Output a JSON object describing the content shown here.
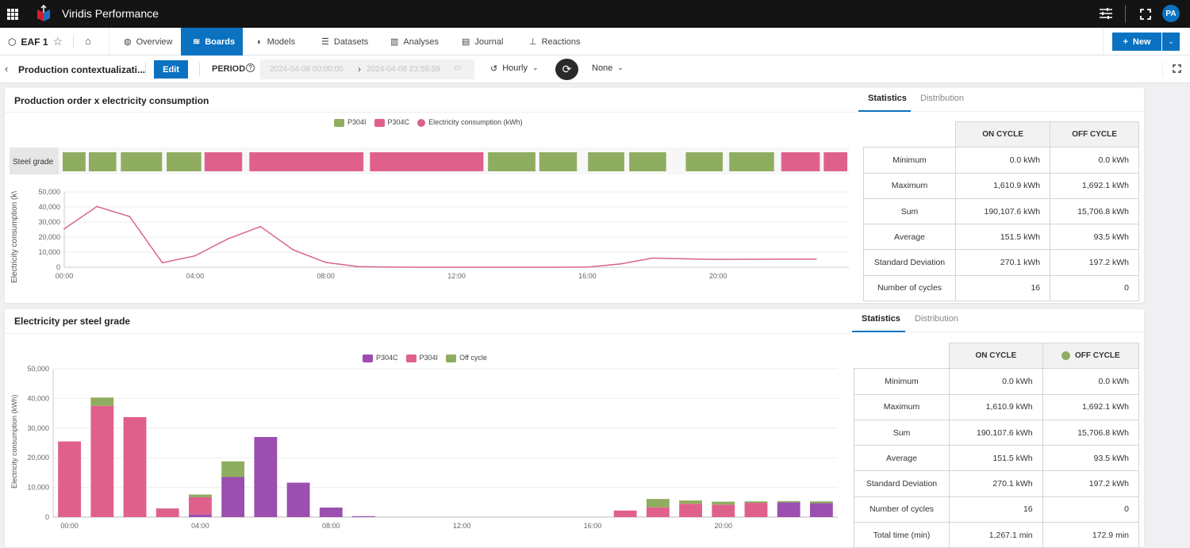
{
  "app": {
    "title": "Viridis Performance",
    "avatar": "PA"
  },
  "nav": {
    "asset": "EAF 1",
    "tabs": [
      {
        "label": "Overview"
      },
      {
        "label": "Boards"
      },
      {
        "label": "Models"
      },
      {
        "label": "Datasets"
      },
      {
        "label": "Analyses"
      },
      {
        "label": "Journal"
      },
      {
        "label": "Reactions"
      }
    ],
    "new_label": "New"
  },
  "toolbar": {
    "board_title": "Production contextualizati...",
    "edit_label": "Edit",
    "period_label": "PERIOD",
    "period_start": "2024-04-08 00:00:00",
    "period_end": "2024-04-08 23:59:59",
    "granularity": "Hourly",
    "aggregation": "None"
  },
  "colors": {
    "accent": "#0a72c0",
    "green": "#8fad60",
    "pink": "#e0608c",
    "purple": "#9b4fae",
    "line": "#d9628e"
  },
  "card1": {
    "title": "Production order x electricity consumption",
    "tabs": [
      "Statistics",
      "Distribution"
    ],
    "stats": {
      "headers": [
        "ON CYCLE",
        "OFF CYCLE"
      ],
      "rows": [
        {
          "label": "Minimum",
          "on": "0.0 kWh",
          "off": "0.0 kWh"
        },
        {
          "label": "Maximum",
          "on": "1,610.9 kWh",
          "off": "1,692.1 kWh"
        },
        {
          "label": "Sum",
          "on": "190,107.6 kWh",
          "off": "15,706.8 kWh"
        },
        {
          "label": "Average",
          "on": "151.5 kWh",
          "off": "93.5 kWh"
        },
        {
          "label": "Standard Deviation",
          "on": "270.1 kWh",
          "off": "197.2 kWh"
        },
        {
          "label": "Number of cycles",
          "on": "16",
          "off": "0"
        }
      ]
    }
  },
  "card2": {
    "title": "Electricity per steel grade",
    "tabs": [
      "Statistics",
      "Distribution"
    ],
    "stats": {
      "headers": [
        "ON CYCLE",
        "OFF CYCLE"
      ],
      "rows": [
        {
          "label": "Minimum",
          "on": "0.0 kWh",
          "off": "0.0 kWh"
        },
        {
          "label": "Maximum",
          "on": "1,610.9 kWh",
          "off": "1,692.1 kWh"
        },
        {
          "label": "Sum",
          "on": "190,107.6 kWh",
          "off": "15,706.8 kWh"
        },
        {
          "label": "Average",
          "on": "151.5 kWh",
          "off": "93.5 kWh"
        },
        {
          "label": "Standard Deviation",
          "on": "270.1 kWh",
          "off": "197.2 kWh"
        },
        {
          "label": "Number of cycles",
          "on": "16",
          "off": "0"
        },
        {
          "label": "Total time (min)",
          "on": "1,267.1 min",
          "off": "172.9 min"
        }
      ]
    }
  },
  "chart_data": [
    {
      "type": "line",
      "title": "Production order x electricity consumption",
      "legend": [
        "P304I",
        "P304C",
        "Electricity consumption (kWh)"
      ],
      "legend_placement": "top-center",
      "band_label": "Steel grade",
      "grade_segments": [
        {
          "start": 0.0,
          "end": 0.7,
          "grade": "P304I"
        },
        {
          "start": 0.8,
          "end": 1.64,
          "grade": "P304I"
        },
        {
          "start": 1.78,
          "end": 3.04,
          "grade": "P304I"
        },
        {
          "start": 3.18,
          "end": 4.24,
          "grade": "P304I"
        },
        {
          "start": 4.34,
          "end": 5.49,
          "grade": "P304C"
        },
        {
          "start": 5.71,
          "end": 9.2,
          "grade": "P304C"
        },
        {
          "start": 9.4,
          "end": 12.87,
          "grade": "P304C"
        },
        {
          "start": 13.01,
          "end": 14.46,
          "grade": "P304I"
        },
        {
          "start": 14.58,
          "end": 15.73,
          "grade": "P304I"
        },
        {
          "start": 16.07,
          "end": 17.18,
          "grade": "P304I"
        },
        {
          "start": 17.33,
          "end": 18.46,
          "grade": "P304I"
        },
        {
          "start": 19.06,
          "end": 20.19,
          "grade": "P304I"
        },
        {
          "start": 20.39,
          "end": 21.76,
          "grade": "P304I"
        },
        {
          "start": 21.98,
          "end": 23.16,
          "grade": "P304C"
        },
        {
          "start": 23.28,
          "end": 24.0,
          "grade": "P304C"
        }
      ],
      "x": [
        0,
        1,
        2,
        3,
        4,
        5,
        6,
        7,
        8,
        9,
        10,
        11,
        12,
        13,
        14,
        15,
        16,
        17,
        18,
        19,
        20,
        21,
        22,
        23
      ],
      "y": [
        25500,
        40300,
        33700,
        3000,
        7600,
        18800,
        27000,
        11600,
        3200,
        400,
        100,
        0,
        0,
        0,
        0,
        0,
        100,
        2200,
        6100,
        5600,
        5200,
        5300,
        5400,
        5400
      ],
      "ylabel": "Electricity consumption (k\\",
      "xlim": [
        0,
        24
      ],
      "ylim": [
        0,
        50000
      ],
      "xticks": [
        "00:00",
        "04:00",
        "08:00",
        "12:00",
        "16:00",
        "20:00"
      ],
      "yticks": [
        "0",
        "10,000",
        "20,000",
        "30,000",
        "40,000",
        "50,000"
      ],
      "grid": true
    },
    {
      "type": "bar",
      "stacked": true,
      "title": "Electricity per steel grade",
      "legend_placement": "top-center",
      "x": [
        0,
        1,
        2,
        3,
        4,
        5,
        6,
        7,
        8,
        9,
        10,
        11,
        12,
        13,
        14,
        15,
        16,
        17,
        18,
        19,
        20,
        21,
        22,
        23
      ],
      "series": [
        {
          "name": "P304C",
          "color": "#9b4fae",
          "values": [
            0,
            0,
            0,
            0,
            900,
            13500,
            27000,
            11600,
            3200,
            300,
            0,
            0,
            0,
            0,
            0,
            0,
            0,
            0,
            0,
            0,
            0,
            0,
            5000,
            4700
          ]
        },
        {
          "name": "P304I",
          "color": "#e0608c",
          "values": [
            25500,
            37500,
            33700,
            2900,
            5800,
            0,
            0,
            0,
            0,
            0,
            0,
            0,
            0,
            0,
            0,
            0,
            0,
            2200,
            3300,
            4500,
            4200,
            4800,
            0,
            0
          ]
        },
        {
          "name": "Off cycle",
          "color": "#8fad60",
          "values": [
            0,
            2800,
            0,
            0,
            900,
            5300,
            0,
            0,
            0,
            0,
            0,
            0,
            0,
            0,
            0,
            0,
            0,
            0,
            2800,
            1100,
            1000,
            500,
            400,
            600
          ]
        }
      ],
      "ylabel": "Electricity consumption (kWh)",
      "xlim": [
        -0.5,
        23.5
      ],
      "ylim": [
        0,
        50000
      ],
      "xticks": [
        "00:00",
        "04:00",
        "08:00",
        "12:00",
        "16:00",
        "20:00"
      ],
      "yticks": [
        "0",
        "10,000",
        "20,000",
        "30,000",
        "40,000",
        "50,000"
      ],
      "grid": true
    }
  ]
}
